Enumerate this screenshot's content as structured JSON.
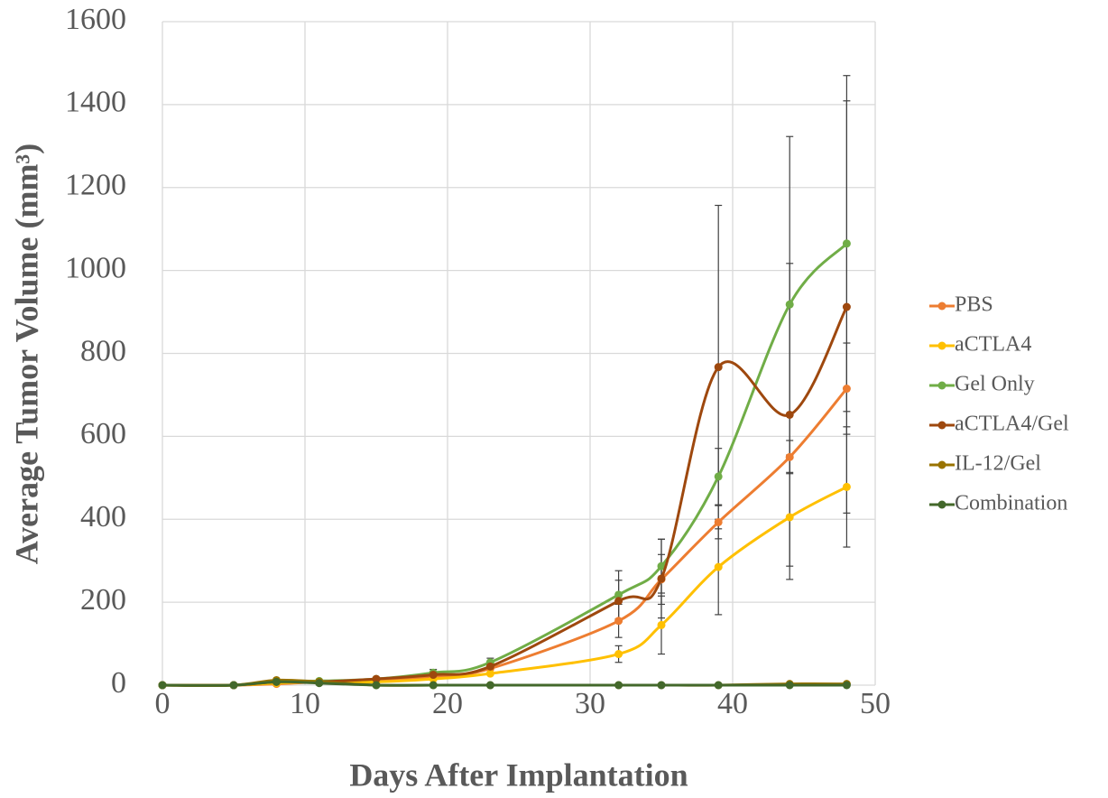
{
  "chart_data": {
    "type": "line",
    "x_label": "Days After Implantation",
    "y_label": "Average Tumor Volume (mm³)",
    "x": [
      0,
      5,
      8,
      11,
      15,
      19,
      23,
      32,
      35,
      39,
      44,
      48
    ],
    "xlim": [
      0,
      50
    ],
    "xticks": [
      0,
      10,
      20,
      30,
      40,
      50
    ],
    "ylim": [
      0,
      1600
    ],
    "yticks": [
      0,
      200,
      400,
      600,
      800,
      1000,
      1200,
      1400,
      1600
    ],
    "grid": true,
    "legend": "right",
    "series": [
      {
        "name": "PBS",
        "color": "#ed7d31",
        "values": [
          0,
          0,
          3,
          8,
          12,
          20,
          40,
          155,
          255,
          393,
          550,
          715
        ],
        "errors": [
          null,
          null,
          null,
          null,
          null,
          null,
          null,
          40,
          60,
          40,
          40,
          110
        ]
      },
      {
        "name": "aCTLA4",
        "color": "#ffc000",
        "values": [
          0,
          0,
          5,
          8,
          8,
          15,
          28,
          75,
          145,
          285,
          405,
          478
        ],
        "errors": [
          null,
          null,
          null,
          null,
          null,
          null,
          null,
          20,
          70,
          115,
          150,
          145
        ]
      },
      {
        "name": "Gel Only",
        "color": "#70ad47",
        "values": [
          0,
          0,
          10,
          10,
          15,
          30,
          55,
          218,
          287,
          503,
          918,
          1065
        ],
        "errors": [
          null,
          null,
          null,
          null,
          null,
          8,
          10,
          58,
          65,
          68,
          405,
          405
        ]
      },
      {
        "name": "aCTLA4/Gel",
        "color": "#9e480e",
        "values": [
          0,
          0,
          8,
          8,
          15,
          25,
          45,
          203,
          257,
          767,
          652,
          912
        ],
        "errors": [
          null,
          null,
          null,
          null,
          null,
          null,
          null,
          50,
          95,
          390,
          365,
          497
        ]
      },
      {
        "name": "IL-12/Gel",
        "color": "#997300",
        "values": [
          0,
          0,
          12,
          8,
          0,
          0,
          0,
          0,
          0,
          0,
          3,
          3
        ]
      },
      {
        "name": "Combination",
        "color": "#43682b",
        "values": [
          0,
          0,
          8,
          5,
          0,
          0,
          0,
          0,
          0,
          0,
          0,
          0
        ]
      }
    ]
  }
}
